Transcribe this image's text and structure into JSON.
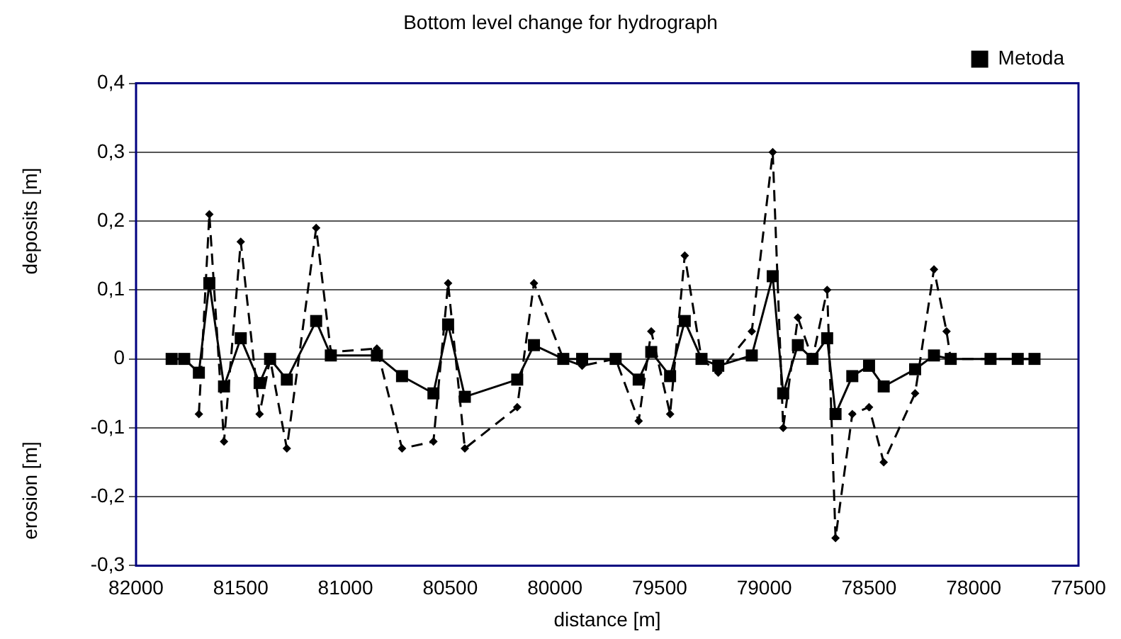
{
  "chart_data": {
    "type": "line",
    "title": "Bottom level change for hydrograph",
    "xlabel": "distance [m]",
    "ylabel": "deposits [m]",
    "annotations": [
      "erosion [m]"
    ],
    "xlim": [
      82000,
      77500
    ],
    "xticks": [
      82000,
      81500,
      81000,
      80500,
      80000,
      79500,
      79000,
      78500,
      78000,
      77500
    ],
    "ylim": [
      -0.3,
      0.4
    ],
    "yticks": [
      {
        "value": -0.3,
        "label": "-0,3"
      },
      {
        "value": -0.2,
        "label": "-0,2"
      },
      {
        "value": -0.1,
        "label": "-0,1"
      },
      0,
      {
        "value": 0.1,
        "label": "0,1"
      },
      {
        "value": 0.2,
        "label": "0,2"
      },
      {
        "value": 0.3,
        "label": "0,3"
      },
      {
        "value": 0.4,
        "label": "0,4"
      }
    ],
    "grid": "y",
    "legend": "top right",
    "series": [
      {
        "color": "#000000",
        "marker": "diamond",
        "line_style": "dashed",
        "x": [
          81700,
          81650,
          81580,
          81500,
          81410,
          81360,
          81280,
          81140,
          81070,
          80850,
          80730,
          80580,
          80510,
          80430,
          80180,
          80100,
          79960,
          79870,
          79710,
          79600,
          79540,
          79450,
          79380,
          79300,
          79220,
          79060,
          78960,
          78910,
          78840,
          78770,
          78700,
          78660,
          78580,
          78500,
          78430,
          78280,
          78190,
          78130,
          78110,
          77920,
          77790,
          77710
        ],
        "values": [
          -0.08,
          0.21,
          -0.12,
          0.17,
          -0.08,
          0,
          -0.13,
          0.19,
          0.01,
          0.015,
          -0.13,
          -0.12,
          0.11,
          -0.13,
          -0.07,
          0.11,
          0,
          -0.01,
          0,
          -0.09,
          0.04,
          -0.08,
          0.15,
          0,
          -0.02,
          0.04,
          0.3,
          -0.1,
          0.06,
          0,
          0.1,
          -0.26,
          -0.08,
          -0.07,
          -0.15,
          -0.05,
          0.13,
          0.04,
          0,
          0,
          0,
          0
        ]
      },
      {
        "name": "Metoda",
        "color": "#000000",
        "marker": "square",
        "line_style": "solid",
        "x": [
          81830,
          81770,
          81700,
          81650,
          81580,
          81500,
          81410,
          81360,
          81280,
          81140,
          81070,
          80850,
          80730,
          80580,
          80510,
          80430,
          80180,
          80100,
          79960,
          79870,
          79710,
          79600,
          79540,
          79450,
          79380,
          79300,
          79220,
          79060,
          78960,
          78910,
          78840,
          78770,
          78700,
          78660,
          78580,
          78500,
          78430,
          78280,
          78190,
          78110,
          77920,
          77790,
          77710
        ],
        "values": [
          0,
          0,
          -0.02,
          0.11,
          -0.04,
          0.03,
          -0.035,
          0,
          -0.03,
          0.055,
          0.005,
          0.005,
          -0.025,
          -0.05,
          0.05,
          -0.055,
          -0.03,
          0.02,
          0,
          0,
          0,
          -0.03,
          0.01,
          -0.025,
          0.055,
          0,
          -0.01,
          0.005,
          0.12,
          -0.05,
          0.02,
          0,
          0.03,
          -0.08,
          -0.025,
          -0.01,
          -0.04,
          -0.015,
          0.005,
          0,
          0,
          0,
          0
        ]
      }
    ]
  }
}
